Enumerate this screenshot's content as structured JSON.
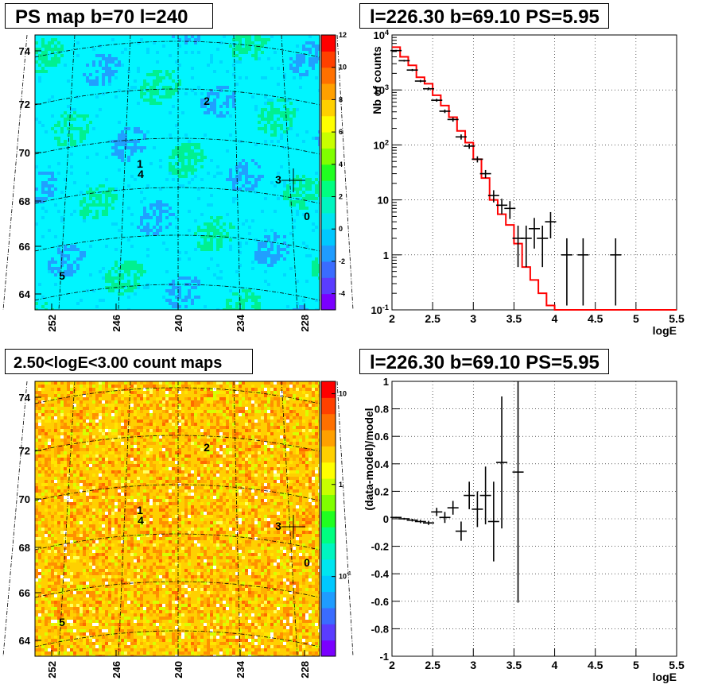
{
  "titles": {
    "ps_map": "PS map b=70 l=240",
    "spectrum": "l=226.30 b=69.10 PS=5.95",
    "count_map": "2.50<logE<3.00 count maps",
    "residual": "l=226.30 b=69.10 PS=5.95"
  },
  "colors": {
    "model_line": "#ff0000",
    "data_points": "#000000",
    "grid": "#000000"
  },
  "chart_data": [
    {
      "type": "heatmap",
      "title": "PS map b=70 l=240",
      "x_ticks": [
        "252",
        "246",
        "240",
        "234",
        "228"
      ],
      "y_ticks": [
        "74",
        "72",
        "70",
        "68",
        "66",
        "64"
      ],
      "colorbar_ticks": [
        "12",
        "10",
        "8",
        "6",
        "4",
        "2",
        "0",
        "-2",
        "-4"
      ],
      "colorbar_range": [
        -5,
        12
      ],
      "dominant_value_range": [
        0,
        4
      ],
      "source_markers": [
        "0",
        "1",
        "2",
        "3",
        "4",
        "5"
      ],
      "grid": true
    },
    {
      "type": "line",
      "title": "l=226.30 b=69.10 PS=5.95",
      "xlabel": "logE",
      "ylabel": "Nb of counts",
      "x_ticks": [
        "2",
        "2.5",
        "3",
        "3.5",
        "4",
        "4.5",
        "5",
        "5.5"
      ],
      "y_ticks": [
        "10^{-1}",
        "1",
        "10",
        "10^{2}",
        "10^{3}",
        "10^{4}"
      ],
      "xlim": [
        2,
        5.5
      ],
      "ylim": [
        0.1,
        10000
      ],
      "log_y": true,
      "grid": true,
      "model_step": {
        "bin_edges": [
          2.0,
          2.1,
          2.2,
          2.3,
          2.4,
          2.5,
          2.6,
          2.7,
          2.8,
          2.9,
          3.0,
          3.1,
          3.2,
          3.3,
          3.4,
          3.5,
          3.6,
          3.7,
          3.8,
          3.9,
          4.0,
          5.5
        ],
        "values": [
          6000,
          4000,
          2800,
          1700,
          1300,
          800,
          520,
          320,
          180,
          110,
          55,
          25,
          10,
          5.5,
          3.5,
          1.6,
          0.6,
          0.35,
          0.2,
          0.12,
          0.1
        ]
      },
      "data_points": [
        {
          "x": 2.05,
          "y": 5200,
          "ylo": 5050,
          "yhi": 5350
        },
        {
          "x": 2.15,
          "y": 3400,
          "ylo": 3280,
          "yhi": 3520
        },
        {
          "x": 2.25,
          "y": 2300,
          "ylo": 2200,
          "yhi": 2400
        },
        {
          "x": 2.35,
          "y": 1450,
          "ylo": 1380,
          "yhi": 1520
        },
        {
          "x": 2.45,
          "y": 1050,
          "ylo": 990,
          "yhi": 1110
        },
        {
          "x": 2.55,
          "y": 650,
          "ylo": 610,
          "yhi": 690
        },
        {
          "x": 2.65,
          "y": 410,
          "ylo": 380,
          "yhi": 440
        },
        {
          "x": 2.75,
          "y": 290,
          "ylo": 265,
          "yhi": 315
        },
        {
          "x": 2.85,
          "y": 140,
          "ylo": 125,
          "yhi": 155
        },
        {
          "x": 2.95,
          "y": 95,
          "ylo": 85,
          "yhi": 105
        },
        {
          "x": 3.05,
          "y": 55,
          "ylo": 48,
          "yhi": 62
        },
        {
          "x": 3.15,
          "y": 30,
          "ylo": 25,
          "yhi": 35
        },
        {
          "x": 3.25,
          "y": 12,
          "ylo": 9,
          "yhi": 15
        },
        {
          "x": 3.35,
          "y": 8,
          "ylo": 5.5,
          "yhi": 10.5
        },
        {
          "x": 3.45,
          "y": 7,
          "ylo": 4.5,
          "yhi": 9.5
        },
        {
          "x": 3.55,
          "y": 2,
          "ylo": 0.6,
          "yhi": 3.4
        },
        {
          "x": 3.65,
          "y": 2,
          "ylo": 0.6,
          "yhi": 3.4
        },
        {
          "x": 3.75,
          "y": 3,
          "ylo": 1.3,
          "yhi": 4.7
        },
        {
          "x": 3.85,
          "y": 2,
          "ylo": 0.6,
          "yhi": 3.4
        },
        {
          "x": 3.95,
          "y": 4,
          "ylo": 2,
          "yhi": 6
        },
        {
          "x": 4.15,
          "y": 1,
          "ylo": 0.12,
          "yhi": 2
        },
        {
          "x": 4.35,
          "y": 1,
          "ylo": 0.12,
          "yhi": 2
        },
        {
          "x": 4.75,
          "y": 1,
          "ylo": 0.12,
          "yhi": 2
        }
      ]
    },
    {
      "type": "heatmap",
      "title": "2.50<logE<3.00 count maps",
      "x_ticks": [
        "252",
        "246",
        "240",
        "234",
        "228"
      ],
      "y_ticks": [
        "74",
        "72",
        "70",
        "68",
        "66",
        "64"
      ],
      "colorbar_ticks": [
        "10",
        "1",
        "10^{-1}"
      ],
      "log_color": true,
      "source_markers": [
        "0",
        "1",
        "2",
        "3",
        "4",
        "5"
      ],
      "grid": true
    },
    {
      "type": "scatter",
      "title": "l=226.30 b=69.10 PS=5.95",
      "xlabel": "logE",
      "ylabel": "(data-model)/model",
      "x_ticks": [
        "2",
        "2.5",
        "3",
        "3.5",
        "4",
        "4.5",
        "5",
        "5.5"
      ],
      "y_ticks": [
        "1",
        "0.8",
        "0.6",
        "0.4",
        "0.2",
        "0",
        "-0.2",
        "-0.4",
        "-0.6",
        "-0.8",
        "-1"
      ],
      "xlim": [
        2,
        5.5
      ],
      "ylim": [
        -1,
        1
      ],
      "grid": true,
      "points": [
        {
          "x": 2.05,
          "y": 0.01,
          "err": 0.005
        },
        {
          "x": 2.15,
          "y": 0.0,
          "err": 0.007
        },
        {
          "x": 2.25,
          "y": -0.01,
          "err": 0.01
        },
        {
          "x": 2.35,
          "y": -0.02,
          "err": 0.012
        },
        {
          "x": 2.45,
          "y": -0.03,
          "err": 0.015
        },
        {
          "x": 2.55,
          "y": 0.05,
          "err": 0.03
        },
        {
          "x": 2.65,
          "y": 0.01,
          "err": 0.04
        },
        {
          "x": 2.75,
          "y": 0.08,
          "err": 0.05
        },
        {
          "x": 2.85,
          "y": -0.09,
          "err": 0.07
        },
        {
          "x": 2.95,
          "y": 0.17,
          "err": 0.1
        },
        {
          "x": 3.05,
          "y": 0.07,
          "err": 0.13
        },
        {
          "x": 3.15,
          "y": 0.17,
          "err": 0.21
        },
        {
          "x": 3.25,
          "y": -0.02,
          "err": 0.29
        },
        {
          "x": 3.35,
          "y": 0.41,
          "err": 0.48
        },
        {
          "x": 3.55,
          "y": 0.34,
          "err": 0.95
        }
      ]
    }
  ]
}
